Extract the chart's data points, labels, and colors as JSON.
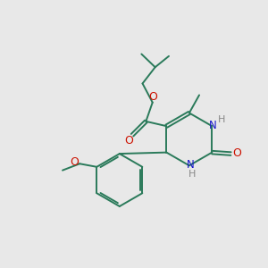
{
  "bg_color": "#e8e8e8",
  "bond_color": "#2a7a5a",
  "o_color": "#cc1100",
  "n_color": "#1515cc",
  "h_color": "#888888",
  "lw": 1.4,
  "doff": 0.06,
  "figsize": [
    3.0,
    3.0
  ],
  "dpi": 100,
  "xlim": [
    0,
    10
  ],
  "ylim": [
    0,
    10
  ]
}
